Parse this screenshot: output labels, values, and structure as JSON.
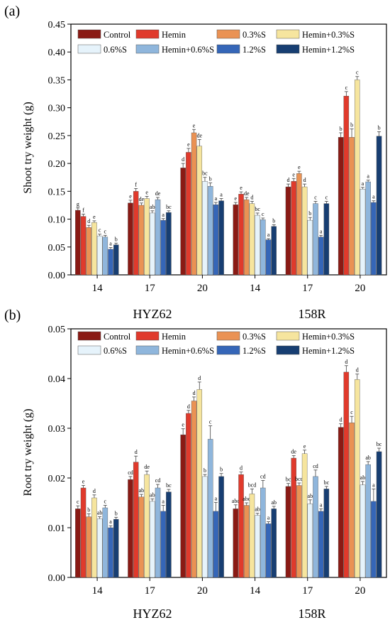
{
  "series_colors": [
    "#8a1a14",
    "#e03a2c",
    "#ea9254",
    "#f6e59e",
    "#e6f3fb",
    "#8fb6dc",
    "#3566b8",
    "#173e72"
  ],
  "chart_data": [
    {
      "type": "bar",
      "panel_label": "(a)",
      "ylabel": "Shoot try weight (g)",
      "ylim": [
        0,
        0.45
      ],
      "yticks": [
        "0.00",
        "0.05",
        "0.10",
        "0.15",
        "0.20",
        "0.25",
        "0.30",
        "0.35",
        "0.40",
        "0.45"
      ],
      "categories": [
        "14",
        "17",
        "20",
        "14",
        "17",
        "20"
      ],
      "groups": [
        "HYZ62",
        "158R"
      ],
      "legend": [
        "Control",
        "Hemin",
        "0.3%S",
        "Hemin+0.3%S",
        "0.6%S",
        "Hemin+0.6%S",
        "1.2%S",
        "Hemin+1.2%S"
      ],
      "series": [
        {
          "name": "Control",
          "values": [
            0.116,
            0.129,
            0.192,
            0.126,
            0.158,
            0.247
          ],
          "errors": [
            0.004,
            0.005,
            0.008,
            0.004,
            0.005,
            0.008
          ],
          "letters": [
            "g",
            "e",
            "d",
            "e",
            "d",
            "b"
          ]
        },
        {
          "name": "Hemin",
          "values": [
            0.105,
            0.15,
            0.22,
            0.145,
            0.168,
            0.321
          ],
          "errors": [
            0.004,
            0.005,
            0.007,
            0.004,
            0.005,
            0.008
          ],
          "letters": [
            "f",
            "f",
            "e",
            "e",
            "e",
            "c"
          ]
        },
        {
          "name": "0.3%S",
          "values": [
            0.085,
            0.125,
            0.255,
            0.135,
            0.182,
            0.247
          ],
          "errors": [
            0.004,
            0.004,
            0.006,
            0.004,
            0.004,
            0.015
          ],
          "letters": [
            "d",
            "de",
            "e",
            "de",
            "e",
            "b"
          ]
        },
        {
          "name": "Hemin+0.3%S",
          "values": [
            0.094,
            0.137,
            0.231,
            0.128,
            0.158,
            0.35
          ],
          "errors": [
            0.003,
            0.004,
            0.012,
            0.004,
            0.005,
            0.006
          ],
          "letters": [
            "e",
            "e",
            "de",
            "d",
            "d",
            "c"
          ]
        },
        {
          "name": "0.6%S",
          "values": [
            0.07,
            0.111,
            0.168,
            0.107,
            0.098,
            0.154
          ],
          "errors": [
            0.003,
            0.004,
            0.007,
            0.004,
            0.005,
            0.003
          ],
          "letters": [
            "c",
            "ab",
            "bc",
            "bc",
            "b",
            "a"
          ]
        },
        {
          "name": "Hemin+0.6%S",
          "values": [
            0.068,
            0.135,
            0.159,
            0.099,
            0.128,
            0.167
          ],
          "errors": [
            0.003,
            0.004,
            0.006,
            0.003,
            0.004,
            0.003
          ],
          "letters": [
            "c",
            "de",
            "b",
            "c",
            "c",
            "a"
          ]
        },
        {
          "name": "1.2%S",
          "values": [
            0.046,
            0.098,
            0.126,
            0.063,
            0.068,
            0.13
          ],
          "errors": [
            0.003,
            0.003,
            0.004,
            0.002,
            0.003,
            0.003
          ],
          "letters": [
            "a",
            "a",
            "a",
            "a",
            "a",
            "a"
          ]
        },
        {
          "name": "Hemin+1.2%S",
          "values": [
            0.054,
            0.112,
            0.133,
            0.087,
            0.128,
            0.249
          ],
          "errors": [
            0.003,
            0.003,
            0.004,
            0.003,
            0.004,
            0.008
          ],
          "letters": [
            "b",
            "bc",
            "a",
            "b",
            "c",
            "b"
          ]
        }
      ]
    },
    {
      "type": "bar",
      "panel_label": "(b)",
      "ylabel": "Root try weight (g)",
      "ylim": [
        0,
        0.05
      ],
      "yticks": [
        "0.00",
        "0.01",
        "0.02",
        "0.03",
        "0.04",
        "0.05"
      ],
      "categories": [
        "14",
        "17",
        "20",
        "14",
        "17",
        "20"
      ],
      "groups": [
        "HYZ62",
        "158R"
      ],
      "legend": [
        "Control",
        "Hemin",
        "0.3%S",
        "Hemin+0.3%S",
        "0.6%S",
        "Hemin+0.6%S",
        "1.2%S",
        "Hemin+1.2%S"
      ],
      "series": [
        {
          "name": "Control",
          "values": [
            0.0138,
            0.0197,
            0.0287,
            0.0138,
            0.0183,
            0.0302
          ],
          "errors": [
            0.0006,
            0.0006,
            0.0012,
            0.0008,
            0.0006,
            0.0007
          ],
          "letters": [
            "c",
            "cd",
            "e",
            "abc",
            "bc",
            "d"
          ]
        },
        {
          "name": "Hemin",
          "values": [
            0.018,
            0.0232,
            0.033,
            0.0207,
            0.024,
            0.0413
          ],
          "errors": [
            0.0005,
            0.0012,
            0.0006,
            0.0005,
            0.0005,
            0.0013
          ],
          "letters": [
            "e",
            "d",
            "d",
            "d",
            "de",
            "d"
          ]
        },
        {
          "name": "0.3%S",
          "values": [
            0.0122,
            0.0162,
            0.0355,
            0.0145,
            0.0185,
            0.0311
          ],
          "errors": [
            0.0006,
            0.0005,
            0.0008,
            0.0005,
            0.0005,
            0.0013
          ],
          "letters": [
            "b",
            "ab",
            "d",
            "abc",
            "bcd",
            "c"
          ]
        },
        {
          "name": "Hemin+0.3%S",
          "values": [
            0.016,
            0.0207,
            0.0378,
            0.0168,
            0.0249,
            0.0398
          ],
          "errors": [
            0.0006,
            0.0007,
            0.0015,
            0.001,
            0.0007,
            0.0011
          ],
          "letters": [
            "d",
            "de",
            "d",
            "bcd",
            "e",
            "d"
          ]
        },
        {
          "name": "0.6%S",
          "values": [
            0.0118,
            0.0153,
            0.0203,
            0.0125,
            0.0148,
            0.0186
          ],
          "errors": [
            0.0004,
            0.0005,
            0.0004,
            0.0004,
            0.0008,
            0.0007
          ],
          "letters": [
            "ab",
            "ab",
            "b",
            "ab",
            "ab",
            "ab"
          ]
        },
        {
          "name": "Hemin+0.6%S",
          "values": [
            0.014,
            0.018,
            0.0278,
            0.018,
            0.0203,
            0.0227
          ],
          "errors": [
            0.0005,
            0.0007,
            0.0027,
            0.0015,
            0.0013,
            0.0006
          ],
          "letters": [
            "c",
            "cd",
            "c",
            "cd",
            "cd",
            "ab"
          ]
        },
        {
          "name": "1.2%S",
          "values": [
            0.01,
            0.0133,
            0.0133,
            0.0108,
            0.0133,
            0.0153
          ],
          "errors": [
            0.0004,
            0.0012,
            0.0018,
            0.0004,
            0.0005,
            0.0025
          ],
          "letters": [
            "a",
            "a",
            "a",
            "a",
            "a",
            "a"
          ]
        },
        {
          "name": "Hemin+1.2%S",
          "values": [
            0.0117,
            0.0172,
            0.0203,
            0.0138,
            0.0178,
            0.0253
          ],
          "errors": [
            0.0004,
            0.0005,
            0.0006,
            0.0005,
            0.0005,
            0.0007
          ],
          "letters": [
            "b",
            "bc",
            "b",
            "ab",
            "bc",
            "bc"
          ]
        }
      ]
    }
  ]
}
